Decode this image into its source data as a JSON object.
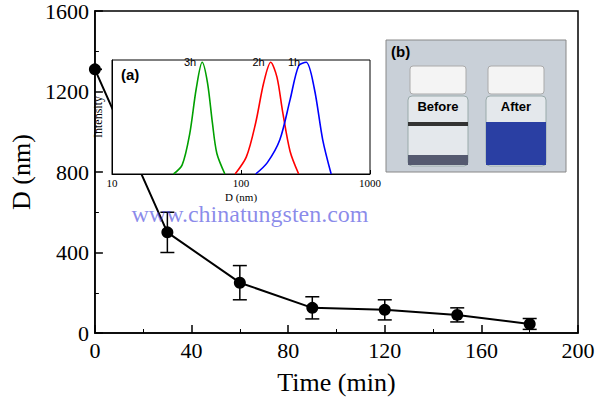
{
  "chart_data": [
    {
      "type": "line",
      "xlabel": "Time (min)",
      "ylabel": "D (nm)",
      "x": [
        0,
        30,
        60,
        90,
        120,
        150,
        180
      ],
      "values": [
        1310,
        500,
        250,
        125,
        115,
        90,
        45
      ],
      "errors": [
        0,
        100,
        85,
        55,
        50,
        35,
        27
      ],
      "color": "#000000",
      "marker": "circle",
      "xlim": [
        0,
        200
      ],
      "xticks": [
        0,
        40,
        80,
        120,
        160,
        200
      ],
      "ylim": [
        0,
        1600
      ],
      "yticks": [
        0,
        400,
        800,
        1200,
        1600
      ],
      "grid": false,
      "annotations": [
        "(b)",
        "Before",
        "After",
        "www.chinatungsten.com"
      ]
    },
    {
      "type": "line",
      "title": "(a)",
      "xlabel": "D (nm)",
      "ylabel": "Intensity",
      "log": "x",
      "xlim": [
        10,
        1000
      ],
      "xticks": [
        10,
        100,
        1000
      ],
      "ylim": [
        0,
        1
      ],
      "tick_labels": "x",
      "grid": false,
      "series": [
        {
          "name": "3h",
          "color": "#00a000",
          "x": [
            30,
            35,
            40,
            45,
            50,
            55,
            60,
            65,
            75
          ],
          "values": [
            0,
            0.08,
            0.35,
            0.75,
            0.98,
            0.8,
            0.45,
            0.18,
            0
          ]
        },
        {
          "name": "2h",
          "color": "#ff0000",
          "x": [
            90,
            110,
            130,
            150,
            170,
            190,
            210,
            240,
            280
          ],
          "values": [
            0,
            0.15,
            0.45,
            0.8,
            0.98,
            0.85,
            0.55,
            0.2,
            0
          ]
        },
        {
          "name": "1h",
          "color": "#0000ff",
          "x": [
            130,
            160,
            200,
            240,
            280,
            320,
            370,
            430,
            500
          ],
          "values": [
            0,
            0.1,
            0.3,
            0.65,
            0.95,
            0.98,
            0.75,
            0.3,
            0
          ]
        }
      ]
    }
  ]
}
